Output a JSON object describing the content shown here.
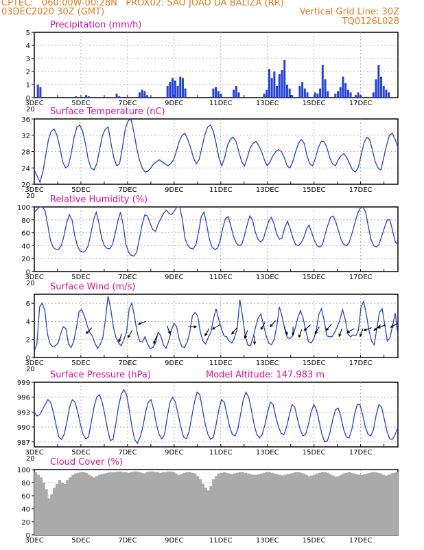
{
  "header": {
    "line1_left": "CPTEC:   060:00W-00:28N   PROX02: SAO JOAO DA BALIZA (RR)",
    "line2_left": "03DEC2020 30Z (GMT)",
    "line2_right": "Vertical Grid Line: 30Z",
    "line3_right": "TQ0126L028"
  },
  "colors": {
    "header": "#e07a1f",
    "title": "#e0109a",
    "line": "#1f3fe0",
    "bar": "#1f3fe0",
    "cloud": "#aaaaaa",
    "arrow": "#000000"
  },
  "chart_data": [
    {
      "id": "precip",
      "type": "bar",
      "title": "Precipitation (mm/h)",
      "ylim": [
        0,
        5
      ],
      "yticks": [
        "0",
        "1",
        "2",
        "3",
        "4",
        "5"
      ],
      "x_labels": [
        "3DEC",
        "5DEC",
        "7DEC",
        "9DEC",
        "11DEC",
        "13DEC",
        "15DEC",
        "17DEC"
      ],
      "x_cut_label": "20",
      "values": [
        0,
        1,
        0.8,
        0,
        0,
        0,
        0,
        0,
        0,
        0,
        0,
        0,
        0,
        0,
        0,
        0,
        0.1,
        0,
        0,
        0,
        0.2,
        0.1,
        0,
        0,
        0,
        0,
        0,
        0,
        0,
        0,
        0,
        0,
        0.3,
        0.1,
        0,
        0,
        0,
        0,
        0,
        0,
        0,
        0.4,
        0.6,
        0.5,
        0.2,
        0,
        0,
        0,
        0,
        0,
        0,
        0,
        0.9,
        1.2,
        1.5,
        1.3,
        0.9,
        1.6,
        1.5,
        0.7,
        0,
        0,
        0,
        0,
        0,
        0,
        0,
        0,
        0,
        0,
        0.7,
        0.8,
        0.5,
        0.3,
        0,
        0,
        0,
        0,
        0.6,
        0.9,
        0.4,
        0,
        0,
        0,
        0,
        0,
        0,
        0,
        0,
        0,
        0.3,
        0.6,
        2.2,
        1.5,
        2.0,
        0.9,
        1.8,
        2.1,
        2.9,
        1.0,
        0.7,
        0.2,
        0,
        0,
        0.9,
        1.2,
        0.7,
        0.4,
        0,
        0,
        0.4,
        0.3,
        0.7,
        2.5,
        1.4,
        0.5,
        0,
        0,
        0.3,
        0.5,
        0.8,
        1.6,
        1.1,
        0.6,
        0.4,
        0,
        0.2,
        0.4,
        0.2,
        0,
        0,
        0,
        0,
        0.4,
        1.4,
        2.5,
        1.6,
        0.9,
        0.6,
        0.4,
        0,
        0,
        0
      ]
    },
    {
      "id": "temp",
      "type": "line",
      "title": "Surface Temperature (nC)",
      "ylim": [
        20,
        36
      ],
      "yticks": [
        "20",
        "24",
        "28",
        "32",
        "36"
      ],
      "x_labels": [
        "3DEC",
        "5DEC",
        "7DEC",
        "9DEC",
        "11DEC",
        "13DEC",
        "15DEC",
        "17DEC"
      ],
      "x_cut_label": "20",
      "values": [
        23.5,
        22,
        20.5,
        23,
        27,
        31,
        33,
        33.5,
        32,
        29,
        25.5,
        24,
        24.5,
        27.5,
        31.5,
        34,
        34.5,
        33,
        30,
        26,
        24,
        23.5,
        25,
        28.5,
        32,
        33.5,
        34,
        30,
        26.5,
        24.5,
        25,
        29,
        33.5,
        35.5,
        36,
        33,
        29,
        26,
        24,
        23,
        23.2,
        24,
        25,
        25.5,
        26,
        25.5,
        25,
        24.5,
        25,
        26,
        28,
        30.5,
        32,
        32.5,
        31,
        29,
        26.5,
        25,
        26,
        29,
        32,
        34,
        34.5,
        33,
        30,
        26.5,
        24.5,
        26.5,
        29.5,
        31,
        31.5,
        30.5,
        28,
        25.5,
        24.5,
        26.5,
        29,
        30,
        30.5,
        29.5,
        28,
        26,
        24.5,
        25.5,
        27,
        28,
        28.5,
        28,
        26.5,
        24.5,
        24,
        25.5,
        28,
        30,
        31,
        30,
        27,
        25,
        24.5,
        26.5,
        29,
        30.5,
        30.5,
        29,
        26.5,
        25,
        24.5,
        26,
        27,
        27.5,
        26.5,
        25,
        23.5,
        23,
        24,
        27,
        30,
        31.5,
        31,
        28.5,
        25.5,
        24,
        23.5,
        26.5,
        29.5,
        32,
        32.5,
        31,
        29
      ]
    },
    {
      "id": "rh",
      "type": "line",
      "title": "Relative Humidity (%)",
      "ylim": [
        0,
        100
      ],
      "yticks": [
        "0",
        "20",
        "40",
        "60",
        "80",
        "100"
      ],
      "x_labels": [
        "3DEC",
        "5DEC",
        "7DEC",
        "9DEC",
        "11DEC",
        "13DEC",
        "15DEC",
        "17DEC"
      ],
      "x_cut_label": "20",
      "values": [
        92,
        96,
        100,
        100,
        94,
        72,
        48,
        38,
        34,
        34,
        40,
        55,
        75,
        88,
        80,
        56,
        40,
        32,
        30,
        32,
        40,
        58,
        80,
        92,
        75,
        52,
        40,
        36,
        35,
        42,
        58,
        78,
        92,
        72,
        42,
        30,
        25,
        24,
        30,
        50,
        72,
        88,
        86,
        75,
        65,
        62,
        74,
        82,
        90,
        95,
        90,
        88,
        94,
        100,
        100,
        80,
        50,
        40,
        36,
        35,
        42,
        62,
        85,
        92,
        72,
        50,
        38,
        34,
        36,
        48,
        68,
        82,
        85,
        70,
        54,
        44,
        40,
        42,
        55,
        72,
        86,
        80,
        62,
        50,
        46,
        50,
        64,
        78,
        84,
        74,
        58,
        50,
        52,
        68,
        78,
        66,
        52,
        42,
        40,
        44,
        52,
        65,
        72,
        60,
        48,
        40,
        38,
        42,
        58,
        72,
        84,
        86,
        76,
        62,
        48,
        42,
        40,
        46,
        60,
        75,
        90,
        98,
        100,
        92,
        70,
        50,
        40,
        38,
        42,
        55,
        68,
        80,
        80,
        64,
        46,
        42
      ]
    },
    {
      "id": "wind",
      "type": "line",
      "title": "Surface Wind (m/s)",
      "ylim": [
        0,
        7
      ],
      "yticks": [
        "0",
        "2",
        "4",
        "6"
      ],
      "x_labels": [
        "3DEC",
        "5DEC",
        "7DEC",
        "9DEC",
        "11DEC",
        "13DEC",
        "15DEC",
        "17DEC"
      ],
      "x_cut_label": "20",
      "values": [
        0.7,
        1.5,
        5.6,
        6,
        5.2,
        2.6,
        1.5,
        1.2,
        1.3,
        1.6,
        2.6,
        3.4,
        3.2,
        1.5,
        1.1,
        1.8,
        3.3,
        5.1,
        5.3,
        4.6,
        3.6,
        2.8,
        2.4,
        1.6,
        1,
        1.4,
        2.2,
        4.2,
        6.8,
        5.4,
        3.4,
        2.2,
        1.6,
        1.3,
        2,
        2.8,
        5.4,
        6,
        4.6,
        2.8,
        1.8,
        1.7,
        2.3,
        1.5,
        1,
        1.1,
        1.6,
        2.8,
        2.4,
        1.4,
        1,
        1.8,
        3,
        3.8,
        3.4,
        2,
        1.2,
        1.1,
        1.7,
        2.8,
        4.6,
        5,
        4.6,
        2.8,
        1.8,
        1.5,
        2.2,
        2.8,
        4.3,
        5.4,
        4.2,
        3.2,
        2.4,
        2.3,
        1.8,
        1.6,
        2.2,
        3.2,
        6.4,
        4.6,
        2.5,
        1.4,
        1.3,
        2.2,
        3.4,
        4.4,
        4.8,
        3.6,
        2.4,
        1.6,
        1.4,
        2,
        3.4,
        5.6,
        4.6,
        3.2,
        2.2,
        2.1,
        2.4,
        3.2,
        4.4,
        5.2,
        4.4,
        3,
        1.8,
        1.6,
        2,
        3,
        4.8,
        5.4,
        4.1,
        2.4,
        2.3,
        2.3,
        2.8,
        3.4,
        4.2,
        5.3,
        4.2,
        2.6,
        2.3,
        2.5,
        2.4,
        3,
        5.6,
        6.2,
        4.8,
        3,
        1.8,
        1.4,
        3.2,
        5,
        5.4,
        3.6,
        1.8,
        2.2,
        3.6,
        4.9,
        2.4
      ],
      "arrows": [
        [
          3.3,
          2.3,
          225
        ],
        [
          5,
          1.6,
          200
        ],
        [
          5.6,
          2,
          210
        ],
        [
          6.4,
          3,
          250
        ],
        [
          7,
          1.4,
          200
        ],
        [
          7.6,
          2.5,
          160
        ],
        [
          8.8,
          2.4,
          90
        ],
        [
          10,
          2.2,
          210
        ],
        [
          10.6,
          2.6,
          240
        ],
        [
          11.6,
          2.3,
          220
        ],
        [
          12.2,
          2,
          200
        ],
        [
          12.6,
          1.4,
          180
        ],
        [
          13.2,
          2.9,
          210
        ],
        [
          13.8,
          3.1,
          220
        ],
        [
          14.3,
          2.4,
          160
        ],
        [
          14.8,
          2.4,
          180
        ],
        [
          15.3,
          2.1,
          200
        ],
        [
          15.8,
          2.6,
          230
        ],
        [
          16.3,
          2.4,
          210
        ],
        [
          17,
          2.7,
          220
        ],
        [
          17.6,
          2.2,
          200
        ],
        [
          18.3,
          2.2,
          240
        ],
        [
          18.8,
          2.2,
          200
        ],
        [
          19.3,
          2.3,
          250
        ],
        [
          19.8,
          2.6,
          230
        ],
        [
          20.1,
          2.6,
          250
        ],
        [
          20.8,
          2.8,
          240
        ]
      ]
    },
    {
      "id": "pres",
      "type": "line",
      "title": "Surface Pressure (hPa)",
      "extra_label": "Model Altitude: 147.983 m",
      "ylim": [
        986,
        999
      ],
      "yticks": [
        "987",
        "990",
        "993",
        "996",
        "999"
      ],
      "x_labels": [
        "3DEC",
        "5DEC",
        "7DEC",
        "9DEC",
        "11DEC",
        "13DEC",
        "15DEC",
        "17DEC"
      ],
      "x_cut_label": "20",
      "values": [
        993,
        992.2,
        992.5,
        993.5,
        994.5,
        995.5,
        995,
        993,
        990.5,
        988,
        987.5,
        988.5,
        991,
        994,
        995.5,
        995,
        993,
        990.5,
        988.5,
        987.6,
        988,
        991,
        994,
        996,
        996.5,
        995,
        992.5,
        989.5,
        987.3,
        987.5,
        990.5,
        994,
        996.5,
        997.5,
        996.5,
        993.5,
        990,
        987.5,
        986.7,
        988,
        990,
        993,
        995,
        995.5,
        993.5,
        990.5,
        988.5,
        987.6,
        988.5,
        992,
        995,
        996,
        995,
        992.5,
        990,
        988,
        987.6,
        989,
        992,
        995,
        997,
        996.5,
        993.5,
        990.5,
        988.5,
        987.5,
        988,
        990.5,
        993.5,
        995.5,
        995,
        992.5,
        990,
        988.5,
        988.2,
        989.5,
        992.5,
        995.5,
        997,
        996,
        993.5,
        990.5,
        988.5,
        987.8,
        988.5,
        990.5,
        993,
        995,
        994.5,
        992,
        990,
        988.7,
        988.5,
        990,
        992.5,
        994.5,
        994,
        991.5,
        989.5,
        988.2,
        988.5,
        990.5,
        993,
        994.5,
        993.5,
        991,
        988.5,
        987,
        987.2,
        989,
        991.5,
        993.5,
        993.8,
        992,
        989.5,
        988,
        987.8,
        989.5,
        992.5,
        994.5,
        994.5,
        992.5,
        990,
        988.5,
        988.2,
        989.5,
        992.5,
        994.5,
        994,
        991.5,
        989,
        987.6,
        987.5,
        988.5,
        990
      ]
    },
    {
      "id": "cloud",
      "type": "area",
      "title": "Cloud Cover (%)",
      "ylim": [
        0,
        100
      ],
      "yticks": [
        "0",
        "20",
        "40",
        "60",
        "80",
        "100"
      ],
      "x_labels": [
        "3DEC",
        "5DEC",
        "7DEC",
        "9DEC",
        "11DEC",
        "13DEC",
        "15DEC",
        "17DEC"
      ],
      "x_cut_label": "20",
      "values": [
        96,
        92,
        88,
        80,
        70,
        56,
        62,
        72,
        78,
        84,
        80,
        78,
        84,
        88,
        92,
        94,
        95,
        96,
        96,
        95,
        92,
        90,
        88,
        90,
        92,
        93,
        94,
        95,
        96,
        96,
        96,
        97,
        97,
        96,
        96,
        95,
        96,
        97,
        97,
        96,
        95,
        94,
        96,
        97,
        97,
        96,
        96,
        95,
        96,
        96,
        97,
        97,
        96,
        94,
        92,
        93,
        95,
        96,
        96,
        95,
        94,
        90,
        85,
        78,
        72,
        68,
        75,
        85,
        90,
        94,
        95,
        96,
        95,
        94,
        93,
        94,
        95,
        96,
        96,
        95,
        94,
        93,
        92,
        92,
        93,
        94,
        95,
        96,
        96,
        95,
        94,
        93,
        92,
        91,
        92,
        93,
        94,
        95,
        96,
        96,
        95,
        94,
        92,
        90,
        91,
        92,
        94,
        95,
        96,
        96,
        95,
        93,
        91,
        89,
        90,
        92,
        94,
        95,
        96,
        95,
        94,
        93,
        92,
        92,
        93,
        94,
        95,
        96,
        96,
        95,
        94,
        92,
        91,
        92,
        94,
        95,
        96
      ]
    }
  ]
}
